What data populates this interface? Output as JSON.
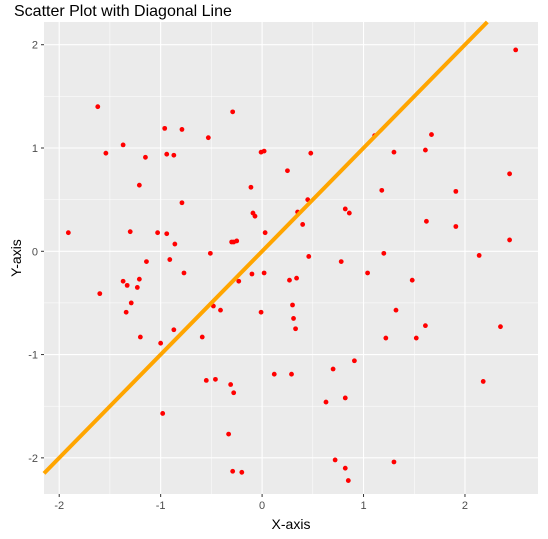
{
  "chart_data": {
    "type": "scatter",
    "title": "Scatter Plot with Diagonal Line",
    "xlabel": "X-axis",
    "ylabel": "Y-axis",
    "xlim": [
      -2.15,
      2.72
    ],
    "ylim": [
      -2.35,
      2.22
    ],
    "xticks": [
      -2,
      -1,
      0,
      1,
      2
    ],
    "yticks": [
      -2,
      -1,
      0,
      1,
      2
    ],
    "xtick_labels": [
      "-2",
      "-1",
      "0",
      "1",
      "2"
    ],
    "ytick_labels": [
      "-2",
      "-1",
      "0",
      "1",
      "2"
    ],
    "grid": true,
    "legend": "none",
    "point_color": "#ff0000",
    "line_color": "#ffa500",
    "panel_color": "#ebebeb",
    "grid_color": "#ffffff",
    "reference_line": {
      "slope": 1,
      "intercept": 0
    },
    "points": [
      [
        -1.62,
        1.4
      ],
      [
        -1.54,
        0.95
      ],
      [
        -1.91,
        0.18
      ],
      [
        -1.6,
        -0.41
      ],
      [
        -1.37,
        1.03
      ],
      [
        -1.21,
        0.64
      ],
      [
        -1.15,
        0.91
      ],
      [
        -1.3,
        0.19
      ],
      [
        -1.14,
        -0.1
      ],
      [
        -1.23,
        -0.35
      ],
      [
        -1.37,
        -0.29
      ],
      [
        -1.33,
        -0.33
      ],
      [
        -1.21,
        -0.27
      ],
      [
        -1.34,
        -0.59
      ],
      [
        -1.29,
        -0.5
      ],
      [
        -1.2,
        -0.83
      ],
      [
        -1.03,
        0.18
      ],
      [
        -0.94,
        0.94
      ],
      [
        -0.87,
        0.93
      ],
      [
        -0.96,
        1.19
      ],
      [
        -0.79,
        1.18
      ],
      [
        -0.94,
        0.17
      ],
      [
        -0.91,
        -0.08
      ],
      [
        -0.86,
        0.07
      ],
      [
        -0.79,
        0.47
      ],
      [
        -0.77,
        -0.21
      ],
      [
        -0.87,
        -0.76
      ],
      [
        -1.0,
        -0.89
      ],
      [
        -0.98,
        -1.57
      ],
      [
        -0.53,
        1.1
      ],
      [
        -0.29,
        1.35
      ],
      [
        -0.51,
        -0.02
      ],
      [
        -0.48,
        -0.53
      ],
      [
        -0.41,
        -0.57
      ],
      [
        -0.59,
        -0.83
      ],
      [
        -0.55,
        -1.25
      ],
      [
        -0.46,
        -1.24
      ],
      [
        -0.3,
        0.09
      ],
      [
        -0.25,
        0.1
      ],
      [
        -0.23,
        -0.29
      ],
      [
        -0.28,
        -1.37
      ],
      [
        -0.31,
        -1.29
      ],
      [
        -0.33,
        -1.77
      ],
      [
        -0.29,
        -2.13
      ],
      [
        -0.2,
        -2.14
      ],
      [
        -0.11,
        0.62
      ],
      [
        -0.09,
        0.37
      ],
      [
        -0.07,
        0.34
      ],
      [
        -0.1,
        -0.22
      ],
      [
        -0.28,
        0.09
      ],
      [
        -0.01,
        0.96
      ],
      [
        0.02,
        0.97
      ],
      [
        0.03,
        0.18
      ],
      [
        0.02,
        -0.21
      ],
      [
        -0.01,
        -0.59
      ],
      [
        0.12,
        -1.19
      ],
      [
        0.25,
        0.78
      ],
      [
        0.35,
        0.38
      ],
      [
        0.45,
        0.5
      ],
      [
        0.4,
        0.26
      ],
      [
        0.48,
        0.95
      ],
      [
        0.46,
        -0.05
      ],
      [
        0.27,
        -0.28
      ],
      [
        0.34,
        -0.26
      ],
      [
        0.3,
        -0.52
      ],
      [
        0.31,
        -0.65
      ],
      [
        0.33,
        -0.75
      ],
      [
        0.29,
        -1.19
      ],
      [
        0.63,
        -1.46
      ],
      [
        0.7,
        -1.14
      ],
      [
        0.72,
        -2.02
      ],
      [
        0.78,
        -0.1
      ],
      [
        0.82,
        0.41
      ],
      [
        0.86,
        0.37
      ],
      [
        0.82,
        -1.42
      ],
      [
        0.82,
        -2.1
      ],
      [
        0.85,
        -2.22
      ],
      [
        0.91,
        -1.06
      ],
      [
        1.11,
        1.12
      ],
      [
        1.18,
        0.59
      ],
      [
        1.2,
        -0.02
      ],
      [
        1.04,
        -0.21
      ],
      [
        1.22,
        -0.84
      ],
      [
        1.3,
        0.96
      ],
      [
        1.32,
        -0.57
      ],
      [
        1.3,
        -2.04
      ],
      [
        1.48,
        -0.28
      ],
      [
        1.52,
        -0.84
      ],
      [
        1.61,
        0.98
      ],
      [
        1.67,
        1.13
      ],
      [
        1.62,
        0.29
      ],
      [
        1.61,
        -0.72
      ],
      [
        1.91,
        0.58
      ],
      [
        1.91,
        0.24
      ],
      [
        2.14,
        -0.04
      ],
      [
        2.18,
        -1.26
      ],
      [
        2.35,
        -0.73
      ],
      [
        2.44,
        0.75
      ],
      [
        2.44,
        0.11
      ],
      [
        2.5,
        1.95
      ]
    ]
  }
}
